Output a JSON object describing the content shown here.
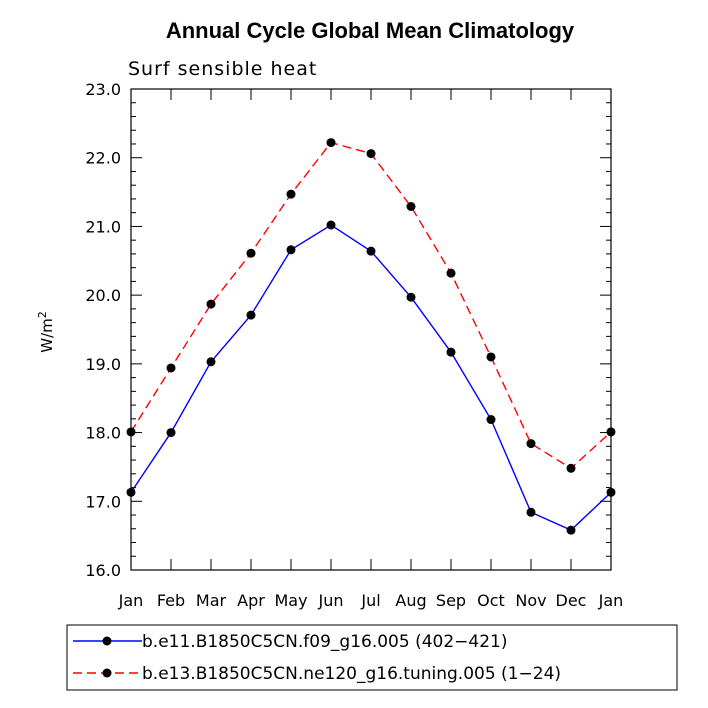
{
  "chart_data": {
    "type": "line",
    "title": "Annual Cycle Global Mean Climatology",
    "subtitle": "Surf sensible heat",
    "ylabel_base": "W/m",
    "ylabel_superscript": "2",
    "xlabel": "",
    "categories": [
      "Jan",
      "Feb",
      "Mar",
      "Apr",
      "May",
      "Jun",
      "Jul",
      "Aug",
      "Sep",
      "Oct",
      "Nov",
      "Dec",
      "Jan"
    ],
    "ylim": [
      16.0,
      23.0
    ],
    "yticks": [
      16.0,
      17.0,
      18.0,
      19.0,
      20.0,
      21.0,
      22.0,
      23.0
    ],
    "ytick_labels": [
      "16.0",
      "17.0",
      "18.0",
      "19.0",
      "20.0",
      "21.0",
      "22.0",
      "23.0"
    ],
    "grid": false,
    "legend_position": "bottom",
    "series": [
      {
        "name": "b.e11.B1850C5CN.f09_g16.005 (402−421)",
        "color": "#0000ff",
        "dash": "solid",
        "values": [
          17.13,
          18.0,
          19.03,
          19.71,
          20.66,
          21.02,
          20.64,
          19.97,
          19.17,
          18.19,
          16.84,
          16.58,
          17.13
        ]
      },
      {
        "name": "b.e13.B1850C5CN.ne120_g16.tuning.005 (1−24)",
        "color": "#ff0000",
        "dash": "dashed",
        "values": [
          18.01,
          18.94,
          19.87,
          20.61,
          21.47,
          22.22,
          22.06,
          21.29,
          20.32,
          19.1,
          17.84,
          17.48,
          18.01
        ]
      }
    ]
  }
}
